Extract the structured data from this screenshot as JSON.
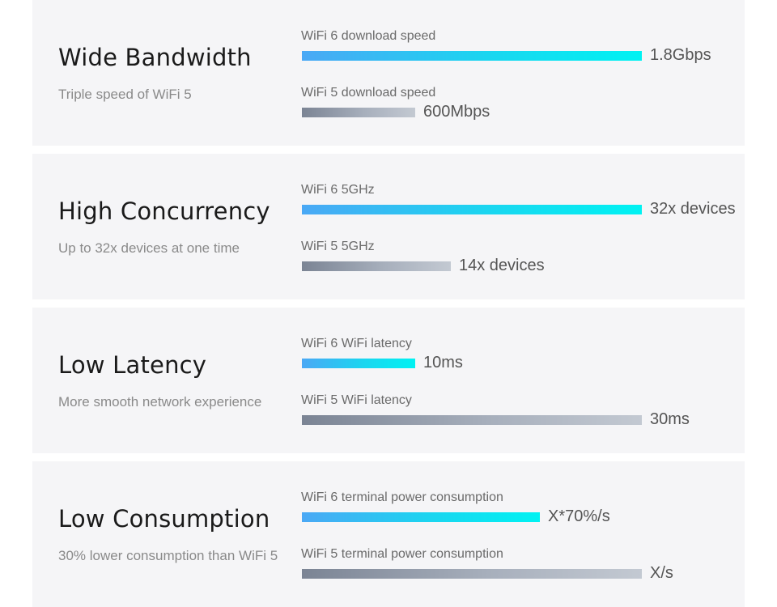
{
  "features": [
    {
      "title": "Wide Bandwidth",
      "subtitle": "Triple speed of WiFi 5",
      "metrics": [
        {
          "label": "WiFi 6 download speed",
          "value": "1.8Gbps",
          "fill": 1.0
        },
        {
          "label": "WiFi 5 download speed",
          "value": "600Mbps",
          "fill": 0.333
        }
      ]
    },
    {
      "title": "High Concurrency",
      "subtitle": "Up to 32x devices at one time",
      "metrics": [
        {
          "label": "WiFi 6 5GHz",
          "value": "32x devices",
          "fill": 1.0
        },
        {
          "label": "WiFi 5 5GHz",
          "value": "14x devices",
          "fill": 0.4375
        }
      ]
    },
    {
      "title": "Low Latency",
      "subtitle": "More smooth network experience",
      "metrics": [
        {
          "label": "WiFi 6 WiFi latency",
          "value": "10ms",
          "fill": 0.333
        },
        {
          "label": "WiFi 5 WiFi latency",
          "value": "30ms",
          "fill": 1.0
        }
      ]
    },
    {
      "title": "Low Consumption",
      "subtitle": "30% lower consumption than WiFi 5",
      "metrics": [
        {
          "label": "WiFi 6 terminal power consumption",
          "value": "X*70%/s",
          "fill": 0.7
        },
        {
          "label": "WiFi 5 terminal power consumption",
          "value": "X/s",
          "fill": 1.0
        }
      ]
    }
  ]
}
